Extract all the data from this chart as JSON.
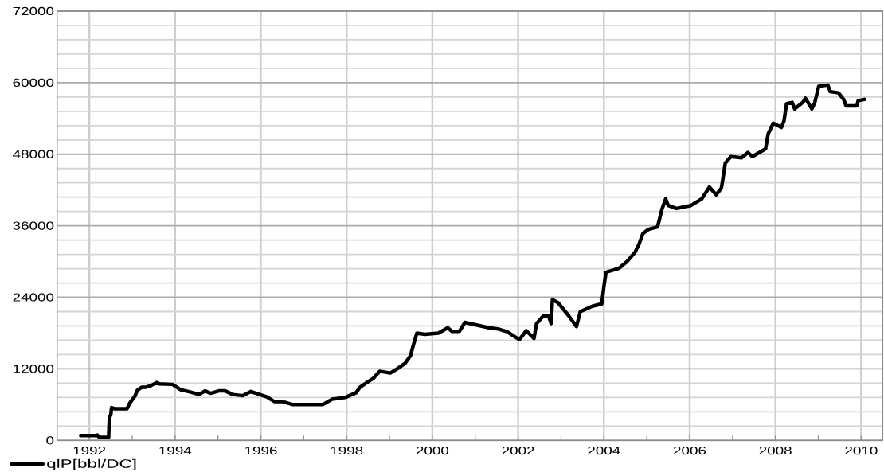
{
  "chart_data": {
    "type": "line",
    "x": [
      1991.8,
      1992.14,
      1992.19,
      1992.23,
      1992.45,
      1992.47,
      1992.5,
      1992.52,
      1992.6,
      1992.88,
      1992.94,
      1993.07,
      1993.12,
      1993.22,
      1993.31,
      1993.44,
      1993.57,
      1993.63,
      1993.94,
      1994.13,
      1994.37,
      1994.56,
      1994.7,
      1994.83,
      1995.02,
      1995.17,
      1995.35,
      1995.58,
      1995.77,
      1995.89,
      1996.14,
      1996.32,
      1996.51,
      1996.75,
      1997.44,
      1997.66,
      1997.97,
      1998.22,
      1998.31,
      1998.43,
      1998.62,
      1998.77,
      1999.02,
      1999.18,
      1999.36,
      1999.49,
      1999.55,
      1999.64,
      1999.83,
      2000.14,
      2000.36,
      2000.45,
      2000.63,
      2000.76,
      2000.94,
      2001.32,
      2001.53,
      2001.75,
      2001.94,
      2002.03,
      2002.19,
      2002.37,
      2002.43,
      2002.59,
      2002.71,
      2002.77,
      2002.8,
      2002.93,
      2003.18,
      2003.36,
      2003.45,
      2003.73,
      2003.95,
      2004.0,
      2004.05,
      2004.36,
      2004.54,
      2004.73,
      2004.82,
      2004.91,
      2005.04,
      2005.25,
      2005.29,
      2005.35,
      2005.44,
      2005.5,
      2005.69,
      2006.03,
      2006.28,
      2006.46,
      2006.62,
      2006.74,
      2006.77,
      2006.83,
      2006.96,
      2007.21,
      2007.36,
      2007.46,
      2007.77,
      2007.83,
      2007.95,
      2008.14,
      2008.2,
      2008.26,
      2008.39,
      2008.45,
      2008.64,
      2008.7,
      2008.85,
      2008.92,
      2009.01,
      2009.22,
      2009.28,
      2009.47,
      2009.59,
      2009.65,
      2009.9,
      2009.93,
      2010.08
    ],
    "series": [
      {
        "name": "qlP[bbl/DC]",
        "color": "#000000",
        "values": [
          800,
          800,
          900,
          500,
          500,
          4000,
          4200,
          5500,
          5300,
          5300,
          6200,
          7500,
          8400,
          8900,
          8900,
          9200,
          9700,
          9500,
          9400,
          8500,
          8100,
          7700,
          8300,
          7900,
          8300,
          8300,
          7700,
          7500,
          8200,
          7900,
          7300,
          6500,
          6500,
          6000,
          6000,
          6900,
          7200,
          8000,
          8900,
          9500,
          10400,
          11600,
          11300,
          12000,
          12900,
          14200,
          15800,
          18000,
          17800,
          18000,
          18900,
          18300,
          18300,
          19800,
          19500,
          18900,
          18700,
          18200,
          17300,
          16900,
          18400,
          17100,
          19600,
          20900,
          20900,
          19600,
          23600,
          23100,
          20900,
          19100,
          21600,
          22500,
          22900,
          25800,
          28200,
          28900,
          30000,
          31600,
          32900,
          34700,
          35400,
          35800,
          36900,
          38700,
          40500,
          39400,
          38900,
          39400,
          40500,
          42500,
          41200,
          42300,
          43600,
          46500,
          47600,
          47400,
          48300,
          47600,
          48900,
          51400,
          53200,
          52500,
          53600,
          56500,
          56700,
          55600,
          56700,
          57400,
          55600,
          56700,
          59400,
          59600,
          58500,
          58300,
          57200,
          56100,
          56100,
          57000,
          57200
        ]
      }
    ],
    "xlim": [
      1991.25,
      2010.5
    ],
    "ylim": [
      0,
      72000
    ],
    "xticks": [
      1992,
      {
        "value": 1993,
        "label": null
      },
      1994,
      {
        "value": 1995,
        "label": null
      },
      1996,
      {
        "value": 1997,
        "label": null
      },
      1998,
      {
        "value": 1999,
        "label": null
      },
      2000,
      {
        "value": 2001,
        "label": null
      },
      2002,
      {
        "value": 2003,
        "label": null
      },
      2004,
      {
        "value": 2005,
        "label": null
      },
      2006,
      {
        "value": 2007,
        "label": null
      },
      2008,
      {
        "value": 2009,
        "label": null
      },
      2010
    ],
    "yticks": [
      0,
      {
        "value": 2400,
        "label": null
      },
      {
        "value": 4800,
        "label": null
      },
      {
        "value": 7200,
        "label": null
      },
      {
        "value": 9600,
        "label": null
      },
      12000,
      {
        "value": 14400,
        "label": null
      },
      {
        "value": 16800,
        "label": null
      },
      {
        "value": 19200,
        "label": null
      },
      {
        "value": 21600,
        "label": null
      },
      24000,
      {
        "value": 26400,
        "label": null
      },
      {
        "value": 28800,
        "label": null
      },
      {
        "value": 31200,
        "label": null
      },
      {
        "value": 33600,
        "label": null
      },
      36000,
      {
        "value": 38400,
        "label": null
      },
      {
        "value": 40800,
        "label": null
      },
      {
        "value": 43200,
        "label": null
      },
      {
        "value": 45600,
        "label": null
      },
      48000,
      {
        "value": 50400,
        "label": null
      },
      {
        "value": 52800,
        "label": null
      },
      {
        "value": 55200,
        "label": null
      },
      {
        "value": 57600,
        "label": null
      },
      60000,
      {
        "value": 62400,
        "label": null
      },
      {
        "value": 64800,
        "label": null
      },
      {
        "value": 67200,
        "label": null
      },
      {
        "value": 69600,
        "label": null
      },
      72000
    ],
    "grid": true,
    "legend": "bottom left",
    "line_style": "solid"
  }
}
